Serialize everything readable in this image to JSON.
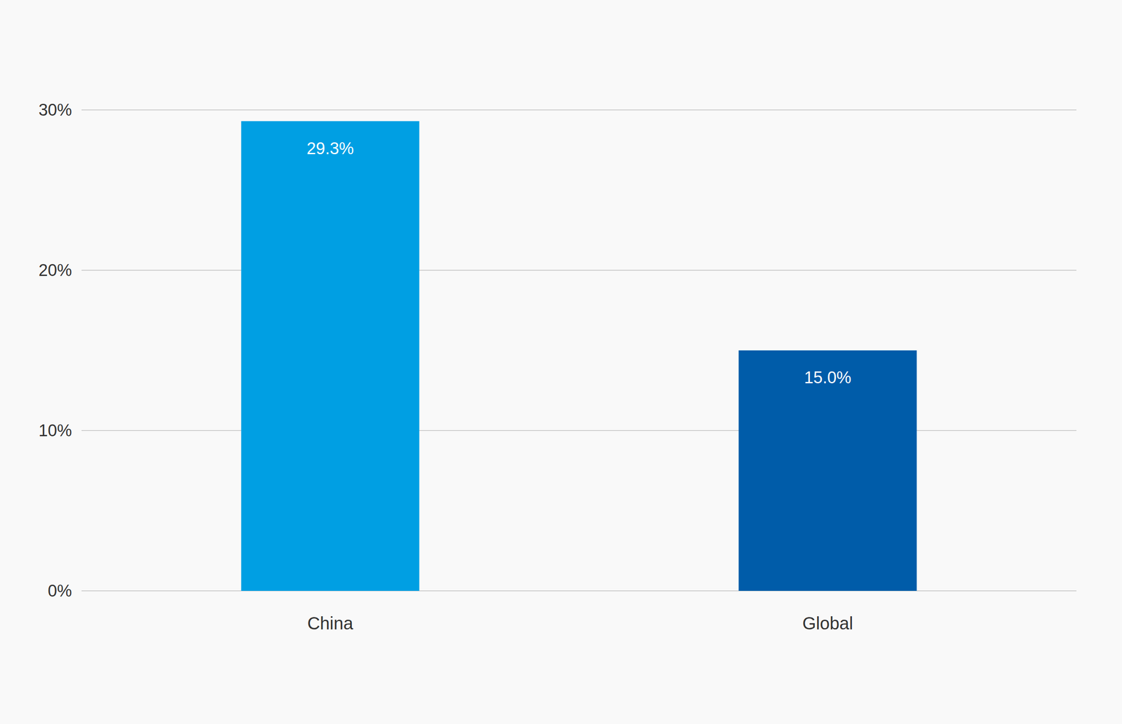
{
  "chart_data": {
    "type": "bar",
    "categories": [
      "China",
      "Global"
    ],
    "values": [
      29.3,
      15.0
    ],
    "value_labels": [
      "29.3%",
      "15.0%"
    ],
    "colors": [
      "#009fe3",
      "#005ca9"
    ],
    "ylim": [
      0,
      30
    ],
    "yticks": [
      {
        "value": 0,
        "label": "0%"
      },
      {
        "value": 10,
        "label": "10%"
      },
      {
        "value": 20,
        "label": "20%"
      },
      {
        "value": 30,
        "label": "30%"
      }
    ],
    "grid": true,
    "data_labels": true
  }
}
